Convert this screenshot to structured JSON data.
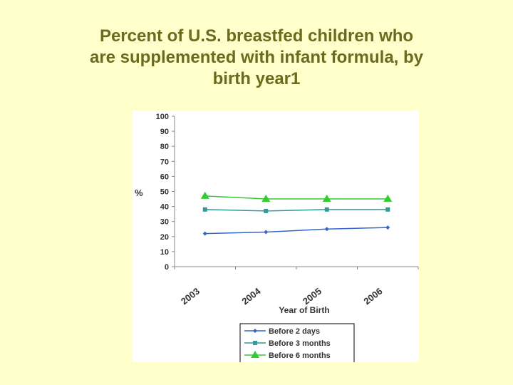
{
  "slide": {
    "title_lines": [
      "Percent of U.S. breastfed children who",
      "are supplemented with infant formula, by",
      "birth year1"
    ]
  },
  "chart_data": {
    "type": "line",
    "categories": [
      "2003",
      "2004",
      "2005",
      "2006"
    ],
    "series": [
      {
        "name": "Before 2 days",
        "values": [
          22,
          23,
          25,
          26
        ],
        "color": "#3366cc",
        "marker": "diamond"
      },
      {
        "name": "Before 3 months",
        "values": [
          38,
          37,
          38,
          38
        ],
        "color": "#339999",
        "marker": "square"
      },
      {
        "name": "Before 6 months",
        "values": [
          47,
          45,
          45,
          45
        ],
        "color": "#33cc33",
        "marker": "triangle"
      }
    ],
    "ylabel": "%",
    "xlabel": "Year of Birth",
    "ylim": [
      0,
      100
    ],
    "yticks": [
      "0",
      "10",
      "20",
      "30",
      "40",
      "50",
      "60",
      "70",
      "80",
      "90",
      "100"
    ],
    "grid": false,
    "legend_position": "bottom"
  }
}
